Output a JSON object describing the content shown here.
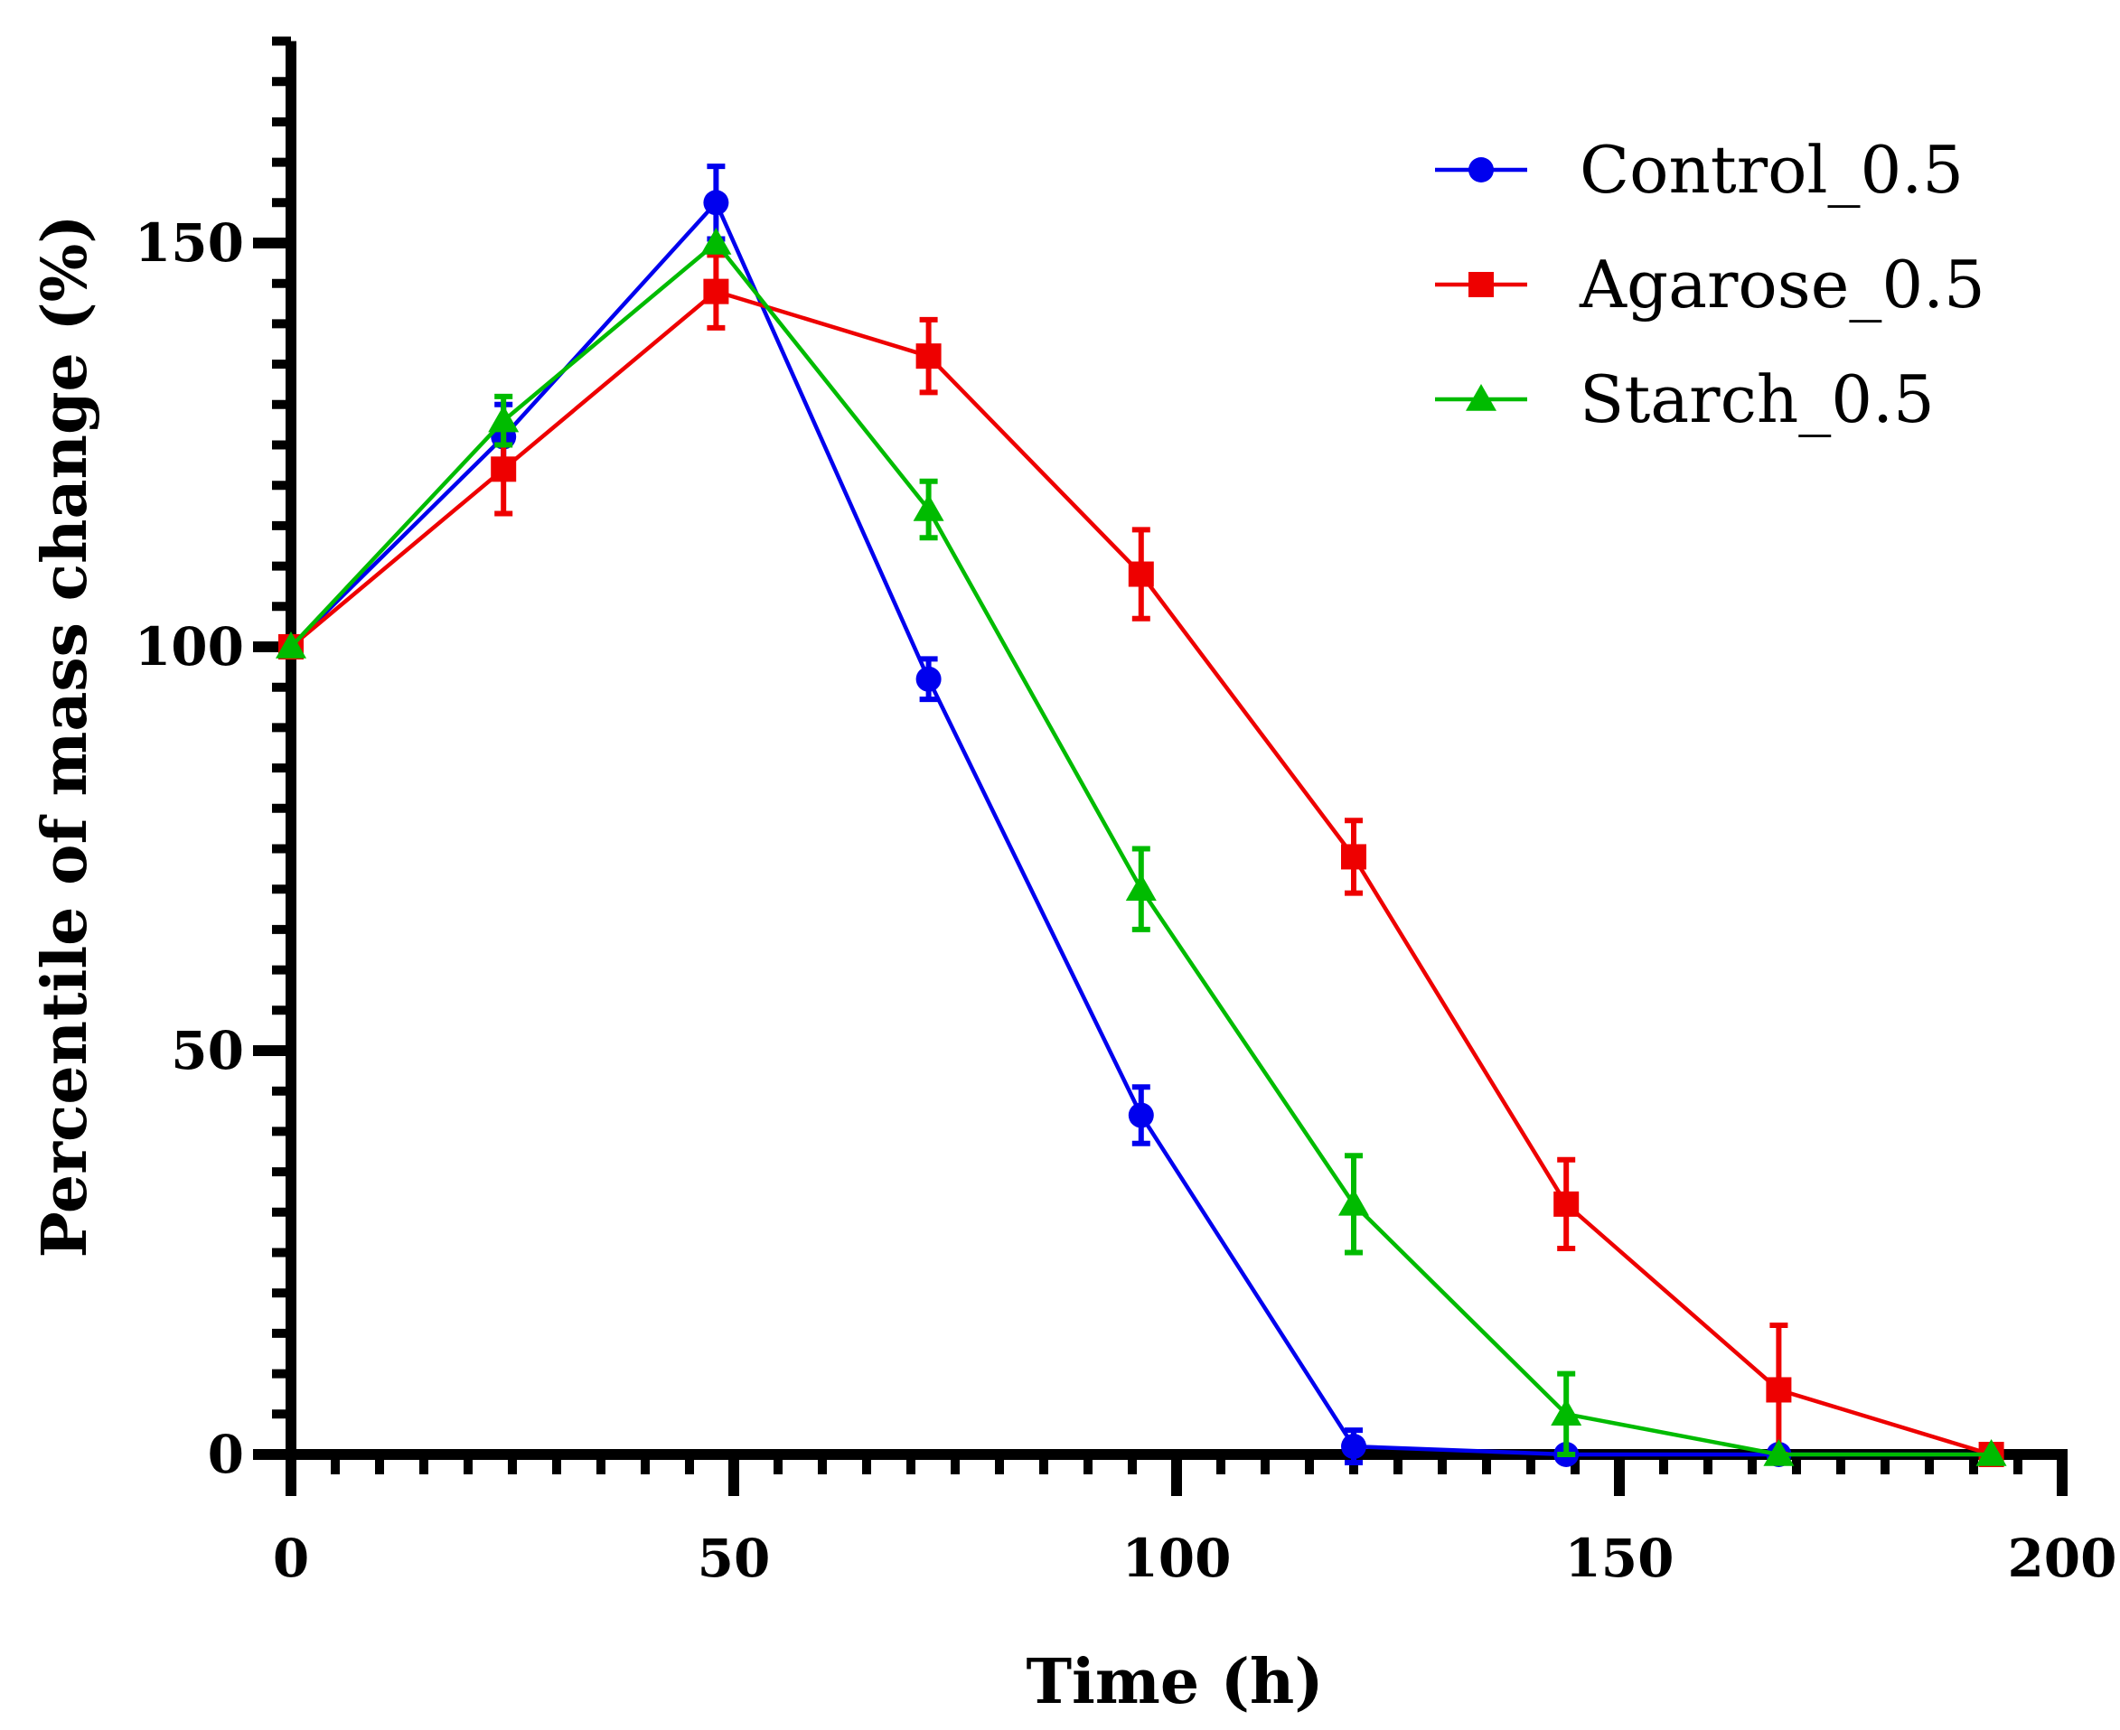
{
  "chart_data": {
    "type": "line",
    "title": "",
    "xlabel": "Time (h)",
    "ylabel": "Percentile of mass change  (%)",
    "xlim": [
      0,
      200
    ],
    "ylim": [
      0,
      175
    ],
    "x_ticks": [
      0,
      50,
      100,
      150,
      200
    ],
    "y_ticks": [
      0,
      50,
      100,
      150
    ],
    "x_minor_step": 5,
    "y_minor_step": 5,
    "grid": false,
    "legend_position": "top-right",
    "series": [
      {
        "name": "Control_0.5",
        "color": "#0000ee",
        "marker": "circle",
        "x": [
          0,
          24,
          48,
          72,
          96,
          120,
          144,
          168,
          192
        ],
        "values": [
          100,
          126,
          155,
          96,
          42,
          1,
          0,
          0,
          0
        ],
        "errors": [
          0,
          4,
          4.5,
          2.5,
          3.5,
          2,
          0,
          0,
          0
        ]
      },
      {
        "name": "Agarose_0.5",
        "color": "#ee0000",
        "marker": "square",
        "x": [
          0,
          24,
          48,
          72,
          96,
          120,
          144,
          168,
          192
        ],
        "values": [
          100,
          122,
          144,
          136,
          109,
          74,
          31,
          8,
          0
        ],
        "errors": [
          0,
          5.5,
          4.5,
          4.5,
          5.5,
          4.5,
          5.5,
          8,
          0
        ]
      },
      {
        "name": "Starch_0.5",
        "color": "#00bb00",
        "marker": "triangle",
        "x": [
          0,
          24,
          48,
          72,
          96,
          120,
          144,
          168,
          192
        ],
        "values": [
          100,
          128,
          150,
          117,
          70,
          31,
          5,
          0,
          0
        ],
        "errors": [
          0,
          3,
          0,
          3.5,
          5,
          6,
          5,
          0,
          0
        ]
      }
    ]
  }
}
